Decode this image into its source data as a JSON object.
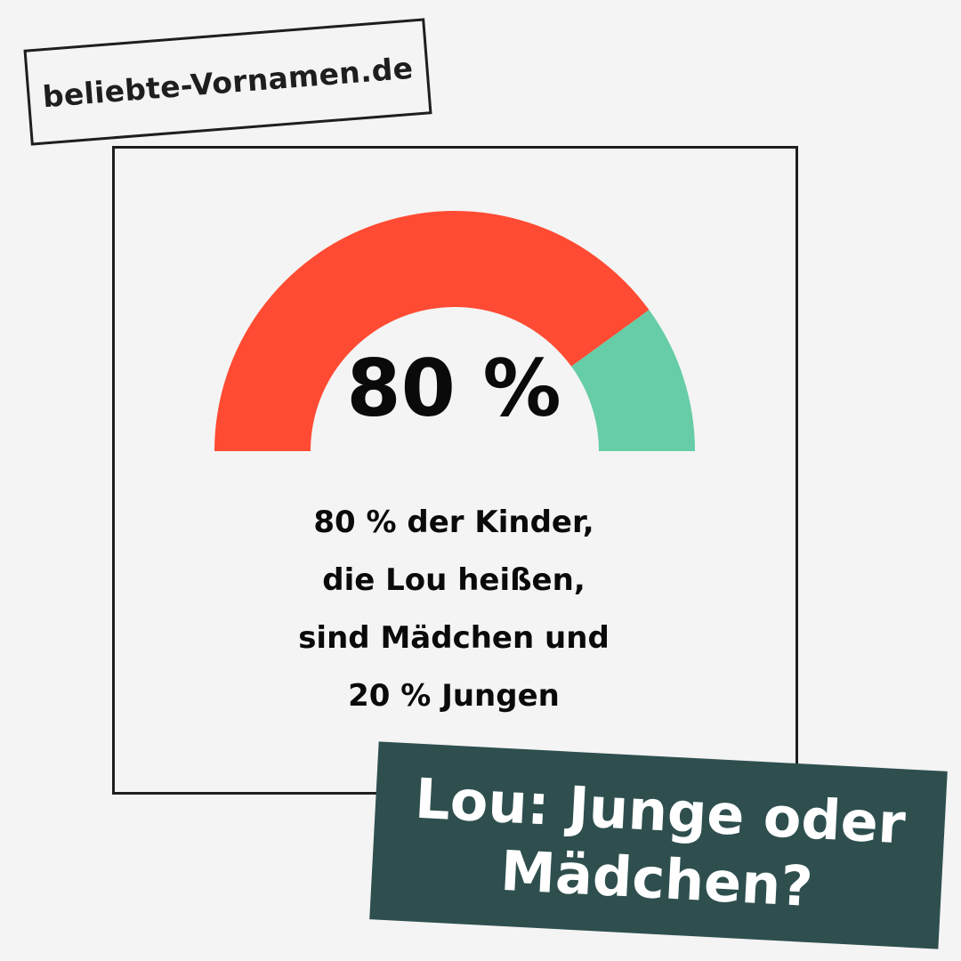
{
  "site": {
    "label": "beliebte-Vornamen.de"
  },
  "gauge": {
    "value_label": "80 %",
    "girls_percent": 80,
    "boys_percent": 20,
    "colors": {
      "girls": "#ff4b33",
      "boys": "#66cda6"
    }
  },
  "description": {
    "lines": [
      "80 % der Kinder,",
      "die Lou heißen,",
      "sind Mädchen und",
      "20 % Jungen"
    ]
  },
  "title": {
    "lines": [
      "Lou: Junge oder",
      "Mädchen?"
    ]
  },
  "chart_data": {
    "type": "pie",
    "subtype": "half-donut gauge",
    "categories": [
      "Mädchen",
      "Jungen"
    ],
    "values": [
      80,
      20
    ],
    "colors": [
      "#ff4b33",
      "#66cda6"
    ],
    "title": "Lou: Junge oder Mädchen?",
    "center_label": "80 %",
    "annotation": "80 % der Kinder, die Lou heißen, sind Mädchen und 20 % Jungen"
  }
}
